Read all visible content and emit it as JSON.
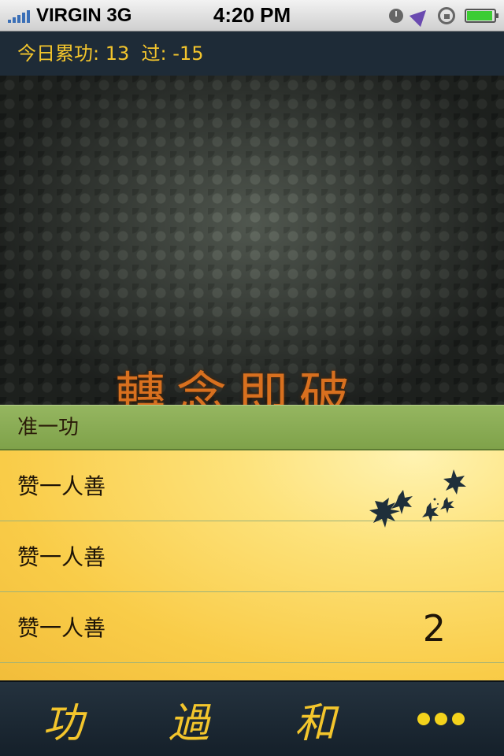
{
  "status_bar": {
    "carrier": "VIRGIN",
    "network": "3G",
    "time": "4:20 PM"
  },
  "summary": {
    "label": "今日累功:",
    "merit": "13",
    "demerit_label": "过:",
    "demerit": "-15"
  },
  "banner": {
    "title": "轉念即破"
  },
  "list": {
    "section_header": "准一功",
    "rows": [
      {
        "label": "赞一人善",
        "count": ""
      },
      {
        "label": "赞一人善",
        "count": ""
      },
      {
        "label": "赞一人善",
        "count": "2"
      }
    ]
  },
  "tabbar": {
    "tab1": "功",
    "tab2": "過",
    "tab3": "和"
  },
  "colors": {
    "accent": "#f3c52c",
    "section_green": "#8aad55",
    "bar_bg": "#1e2b37"
  }
}
